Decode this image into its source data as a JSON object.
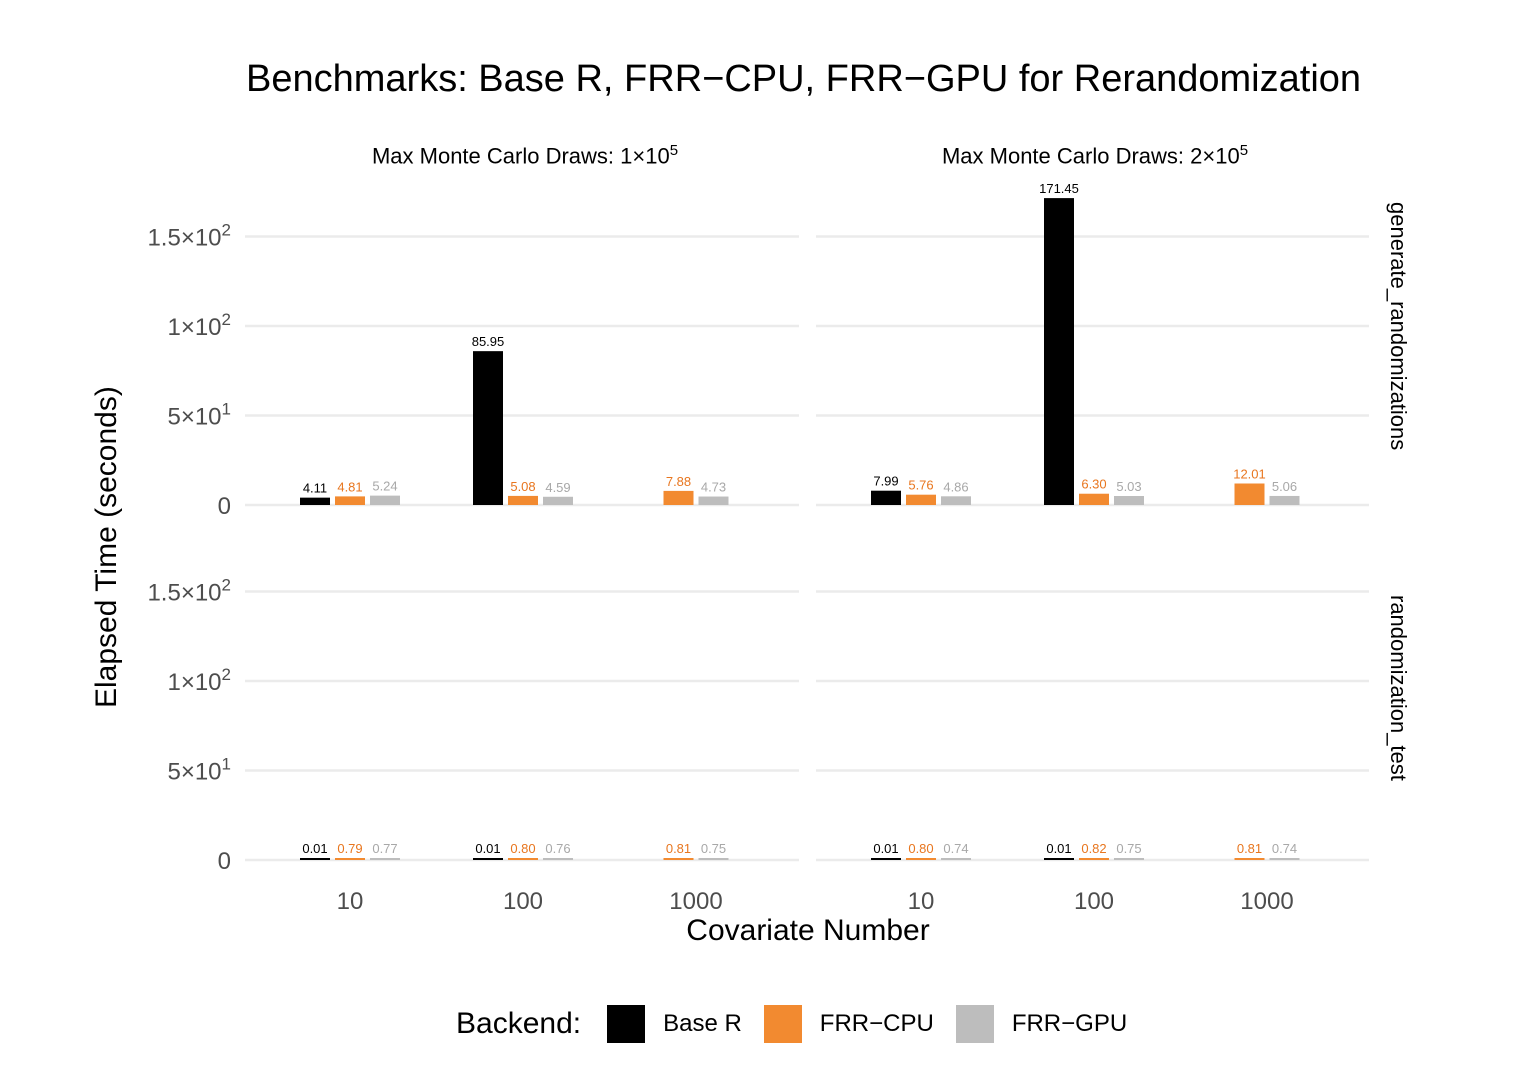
{
  "chart_data": {
    "type": "bar",
    "title": "Benchmarks: Base R, FRR−CPU, FRR−GPU for Rerandomization",
    "xlabel": "Covariate Number",
    "ylabel": "Elapsed Time (seconds)",
    "ylim": [
      0,
      175
    ],
    "categories": [
      "10",
      "100",
      "1000"
    ],
    "y_ticks": [
      {
        "value": 0,
        "label": "0"
      },
      {
        "value": 50,
        "label": "5×10",
        "exp": "1"
      },
      {
        "value": 100,
        "label": "1×10",
        "exp": "2"
      },
      {
        "value": 150,
        "label": "1.5×10",
        "exp": "2"
      }
    ],
    "legend": {
      "title": "Backend:",
      "position": "bottom",
      "items": [
        {
          "name": "Base R",
          "color": "#000000",
          "label_color": "#000000"
        },
        {
          "name": "FRR−CPU",
          "color": "#F28A30",
          "label_color": "#E8761F"
        },
        {
          "name": "FRR−GPU",
          "color": "#BDBDBD",
          "label_color": "#A8A8A8"
        }
      ]
    },
    "column_facets": [
      {
        "label": "Max Monte Carlo Draws: ",
        "mantissa": "1×10",
        "exp": "5"
      },
      {
        "label": "Max Monte Carlo Draws: ",
        "mantissa": "2×10",
        "exp": "5"
      }
    ],
    "row_facets": [
      "generate_randomizations",
      "randomization_test"
    ],
    "panels": [
      {
        "col": 0,
        "row": 0,
        "series": [
          {
            "name": "Base R",
            "values": [
              4.11,
              85.95,
              null
            ],
            "labels": [
              "4.11",
              "85.95",
              null
            ]
          },
          {
            "name": "FRR−CPU",
            "values": [
              4.81,
              5.08,
              7.88
            ],
            "labels": [
              "4.81",
              "5.08",
              "7.88"
            ]
          },
          {
            "name": "FRR−GPU",
            "values": [
              5.24,
              4.59,
              4.73
            ],
            "labels": [
              "5.24",
              "4.59",
              "4.73"
            ]
          }
        ]
      },
      {
        "col": 1,
        "row": 0,
        "series": [
          {
            "name": "Base R",
            "values": [
              7.99,
              171.45,
              null
            ],
            "labels": [
              "7.99",
              "171.45",
              null
            ]
          },
          {
            "name": "FRR−CPU",
            "values": [
              5.76,
              6.3,
              12.01
            ],
            "labels": [
              "5.76",
              "6.30",
              "12.01"
            ]
          },
          {
            "name": "FRR−GPU",
            "values": [
              4.86,
              5.03,
              5.06
            ],
            "labels": [
              "4.86",
              "5.03",
              "5.06"
            ]
          }
        ]
      },
      {
        "col": 0,
        "row": 1,
        "series": [
          {
            "name": "Base R",
            "values": [
              0.01,
              0.01,
              null
            ],
            "labels": [
              "0.01",
              "0.01",
              null
            ]
          },
          {
            "name": "FRR−CPU",
            "values": [
              0.79,
              0.8,
              0.81
            ],
            "labels": [
              "0.79",
              "0.80",
              "0.81"
            ]
          },
          {
            "name": "FRR−GPU",
            "values": [
              0.77,
              0.76,
              0.75
            ],
            "labels": [
              "0.77",
              "0.76",
              "0.75"
            ]
          }
        ]
      },
      {
        "col": 1,
        "row": 1,
        "series": [
          {
            "name": "Base R",
            "values": [
              0.01,
              0.01,
              null
            ],
            "labels": [
              "0.01",
              "0.01",
              null
            ]
          },
          {
            "name": "FRR−CPU",
            "values": [
              0.8,
              0.82,
              0.81
            ],
            "labels": [
              "0.80",
              "0.82",
              "0.81"
            ]
          },
          {
            "name": "FRR−GPU",
            "values": [
              0.74,
              0.75,
              0.74
            ],
            "labels": [
              "0.74",
              "0.75",
              "0.74"
            ]
          }
        ]
      }
    ]
  }
}
